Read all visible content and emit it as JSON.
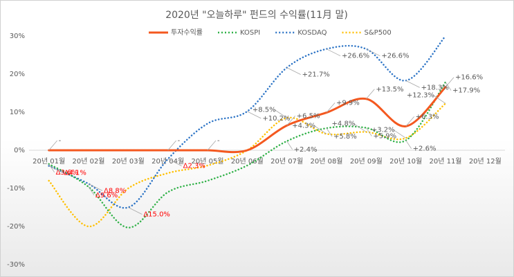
{
  "chart_data": {
    "type": "line",
    "title": "2020년 \"오늘하루\" 펀드의 수익률(11月 말)",
    "categories": [
      "20년 01월",
      "20년 02월",
      "20년 03월",
      "20년 04월",
      "20년 05월",
      "20년 06월",
      "20년 07월",
      "20년 08월",
      "20년 09월",
      "20년 10월",
      "20년 11월",
      "20년 12월"
    ],
    "ylim": [
      -30,
      30
    ],
    "yticks": [
      {
        "value": -30,
        "label": "-30%"
      },
      {
        "value": -20,
        "label": "-20%"
      },
      {
        "value": -10,
        "label": "-10%"
      },
      {
        "value": 0,
        "label": "0%"
      },
      {
        "value": 10,
        "label": "10%"
      },
      {
        "value": 20,
        "label": "20%"
      },
      {
        "value": 30,
        "label": "30%"
      }
    ],
    "legend": "top",
    "series": [
      {
        "name": "투자수익률",
        "color": "#f4581f",
        "values": [
          0,
          0,
          0,
          0,
          0,
          0,
          6.5,
          9.9,
          13.5,
          6.3,
          16.6,
          null
        ],
        "value_labels": [
          "-",
          null,
          null,
          "-",
          "-",
          null,
          "+6.5%",
          "+9.9%",
          "+13.5%",
          "+6.3%",
          "+16.6%",
          null
        ]
      },
      {
        "name": "KOSPI",
        "color": "#33b24a",
        "values": [
          -3.6,
          -9.6,
          -20.3,
          -11,
          -8,
          -4,
          2.4,
          5.8,
          5.9,
          2.6,
          17.9,
          null
        ],
        "value_labels": [
          "Δ3.6%",
          "Δ9.6%",
          null,
          null,
          null,
          null,
          "+2.4%",
          "+5.8%",
          "+5.9%",
          "+2.6%",
          "+17.9%",
          null
        ]
      },
      {
        "name": "KOSDAQ",
        "color": "#2e75c6",
        "values": [
          -4.1,
          -8.8,
          -15.0,
          -2.3,
          7,
          10.2,
          21.7,
          26.6,
          26.6,
          18.3,
          30,
          null
        ],
        "value_labels": [
          "Δ4.1%",
          "Δ8.8%",
          "Δ15.0%",
          "Δ2.3%",
          null,
          "+10.2%",
          "+21.7%",
          "+26.6%",
          "+26.6%",
          "+18.3%",
          null,
          null
        ]
      },
      {
        "name": "S&P500",
        "color": "#ffc000",
        "values": [
          -8,
          -20,
          -10,
          -6,
          -4,
          0,
          8.5,
          4.3,
          4.8,
          3.2,
          12.3,
          null
        ],
        "value_labels": [
          null,
          null,
          null,
          null,
          null,
          null,
          "+8.5%",
          "+4.3%",
          "+4.8%",
          "+3.2%",
          "+12.3%",
          null
        ]
      }
    ]
  }
}
